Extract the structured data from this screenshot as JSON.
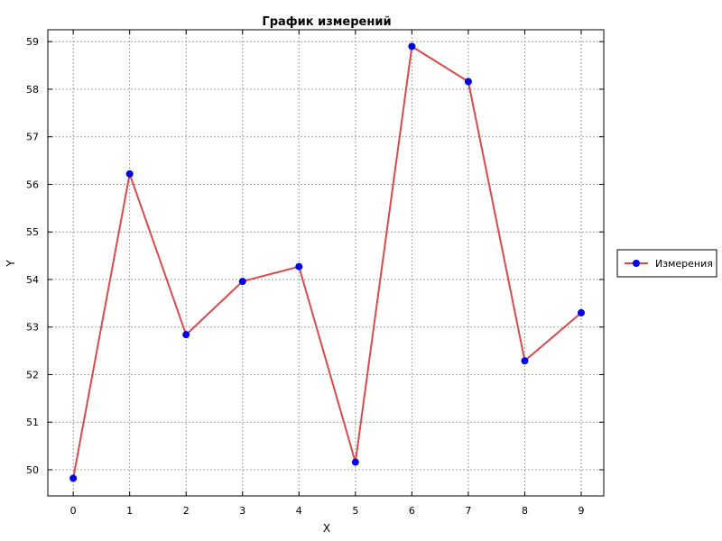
{
  "chart_data": {
    "type": "line",
    "title": "График измерений",
    "xlabel": "X",
    "ylabel": "Y",
    "xlim": [
      -0.45,
      9.4
    ],
    "ylim": [
      49.45,
      59.25
    ],
    "x_ticks": [
      0,
      1,
      2,
      3,
      4,
      5,
      6,
      7,
      8,
      9
    ],
    "y_ticks": [
      50,
      51,
      52,
      53,
      54,
      55,
      56,
      57,
      58,
      59
    ],
    "grid": true,
    "legend_position": "right",
    "series": [
      {
        "name": "Измерения",
        "x": [
          0,
          1,
          2,
          3,
          4,
          5,
          6,
          7,
          8,
          9
        ],
        "y": [
          49.82,
          56.22,
          52.84,
          53.96,
          54.27,
          50.16,
          58.9,
          58.16,
          52.29,
          53.3
        ],
        "line_color": "#d94a4a",
        "marker_color": "#0000e6"
      }
    ]
  }
}
